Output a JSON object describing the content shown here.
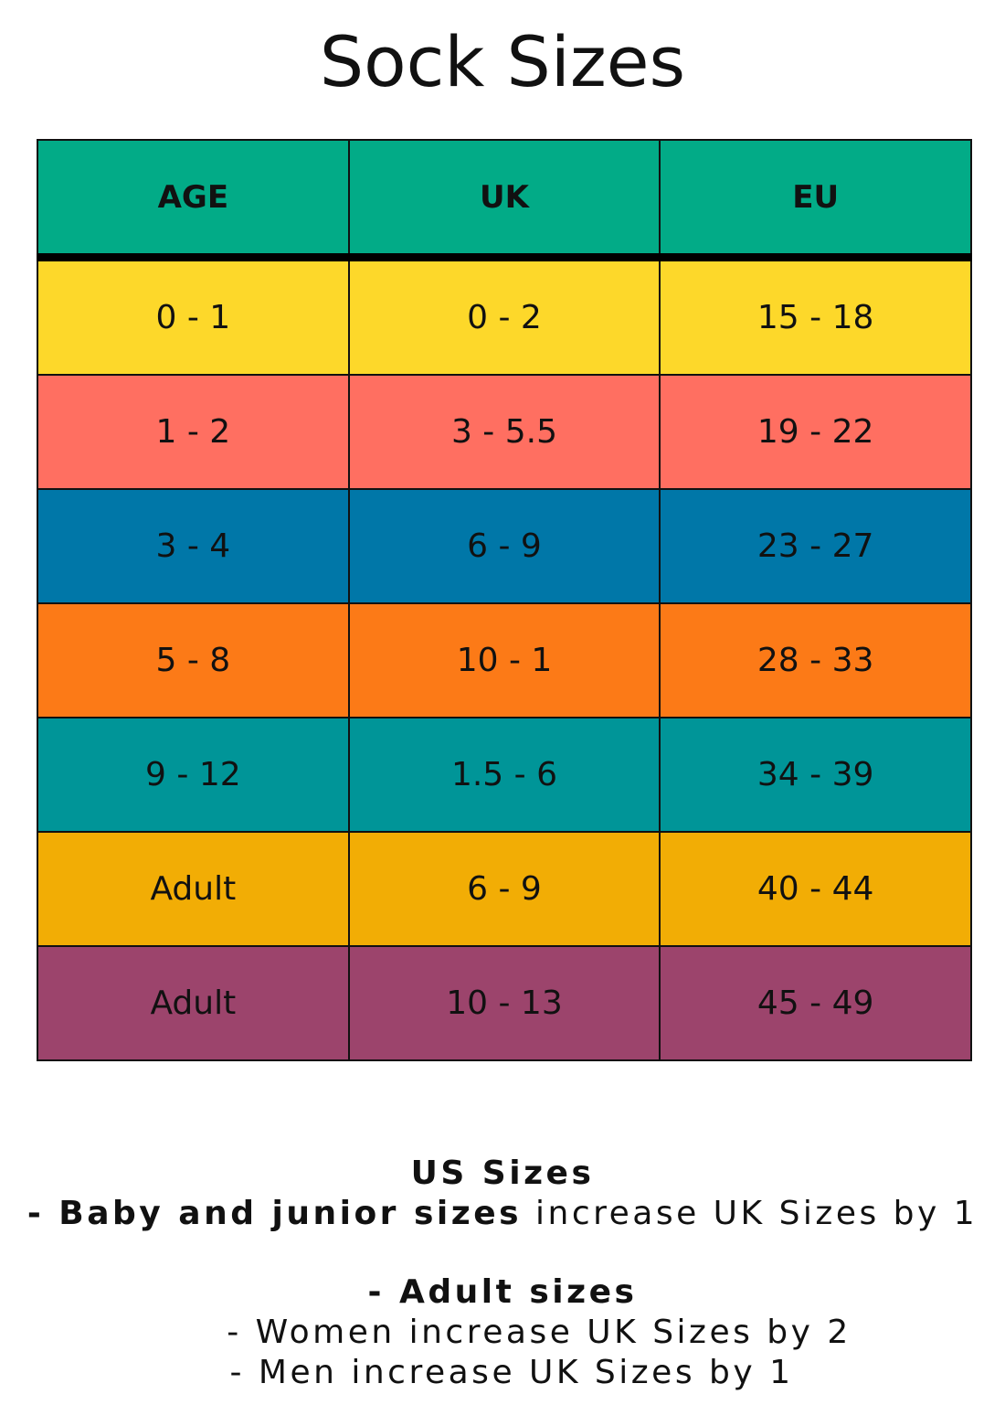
{
  "title": "Sock Sizes",
  "table": {
    "header": [
      "AGE",
      "UK",
      "EU"
    ],
    "rows": [
      [
        "0 - 1",
        "0 - 2",
        "15 - 18"
      ],
      [
        "1 - 2",
        "3 - 5.5",
        "19 - 22"
      ],
      [
        "3 - 4",
        "6 - 9",
        "23 - 27"
      ],
      [
        "5 - 8",
        "10 - 1",
        "28 - 33"
      ],
      [
        "9 - 12",
        "1.5 - 6",
        "34 - 39"
      ],
      [
        "Adult",
        "6 - 9",
        "40 - 44"
      ],
      [
        "Adult",
        "10 - 13",
        "45 - 49"
      ]
    ]
  },
  "notes": {
    "heading": "US Sizes",
    "junior": {
      "bold": "- Baby and junior sizes",
      "text": "increase UK Sizes by 1"
    },
    "adult_heading": "- Adult sizes",
    "women": "- Women increase UK Sizes by 2",
    "men": "- Men increase UK Sizes by 1"
  }
}
